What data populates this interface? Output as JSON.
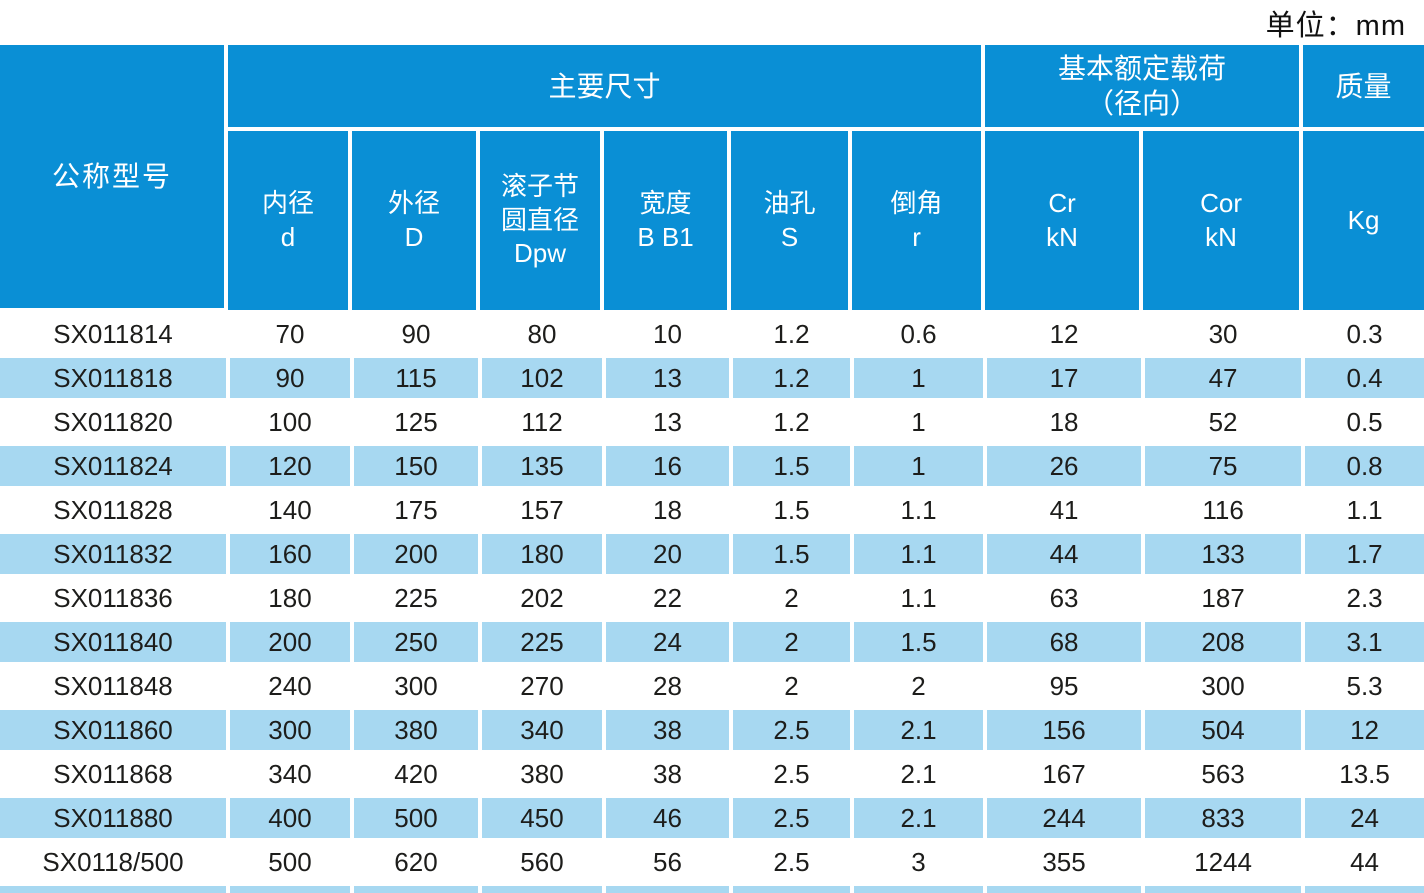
{
  "unit_label": "单位：mm",
  "colors": {
    "header_blue": "#0a8fd5",
    "row_light_blue": "#a7d8f1",
    "text_dark": "#1d1d1b",
    "header_text": "#ffffff"
  },
  "table": {
    "header": {
      "col_model": "公称型号",
      "group_main_dims": "主要尺寸",
      "group_load": "基本额定载荷\n（径向）",
      "group_mass": "质量",
      "sub": [
        "内径\nd",
        "外径\nD",
        "滚子节\n圆直径\nDpw",
        "宽度\nB B1",
        "油孔\nS",
        "倒角\nr",
        "Cr\nkN",
        "Cor\nkN",
        "Kg"
      ]
    },
    "rows": [
      [
        "SX011814",
        "70",
        "90",
        "80",
        "10",
        "1.2",
        "0.6",
        "12",
        "30",
        "0.3"
      ],
      [
        "SX011818",
        "90",
        "115",
        "102",
        "13",
        "1.2",
        "1",
        "17",
        "47",
        "0.4"
      ],
      [
        "SX011820",
        "100",
        "125",
        "112",
        "13",
        "1.2",
        "1",
        "18",
        "52",
        "0.5"
      ],
      [
        "SX011824",
        "120",
        "150",
        "135",
        "16",
        "1.5",
        "1",
        "26",
        "75",
        "0.8"
      ],
      [
        "SX011828",
        "140",
        "175",
        "157",
        "18",
        "1.5",
        "1.1",
        "41",
        "116",
        "1.1"
      ],
      [
        "SX011832",
        "160",
        "200",
        "180",
        "20",
        "1.5",
        "1.1",
        "44",
        "133",
        "1.7"
      ],
      [
        "SX011836",
        "180",
        "225",
        "202",
        "22",
        "2",
        "1.1",
        "63",
        "187",
        "2.3"
      ],
      [
        "SX011840",
        "200",
        "250",
        "225",
        "24",
        "2",
        "1.5",
        "68",
        "208",
        "3.1"
      ],
      [
        "SX011848",
        "240",
        "300",
        "270",
        "28",
        "2",
        "2",
        "95",
        "300",
        "5.3"
      ],
      [
        "SX011860",
        "300",
        "380",
        "340",
        "38",
        "2.5",
        "2.1",
        "156",
        "504",
        "12"
      ],
      [
        "SX011868",
        "340",
        "420",
        "380",
        "38",
        "2.5",
        "2.1",
        "167",
        "563",
        "13.5"
      ],
      [
        "SX011880",
        "400",
        "500",
        "450",
        "46",
        "2.5",
        "2.1",
        "244",
        "833",
        "24"
      ],
      [
        "SX0118/500",
        "500",
        "620",
        "560",
        "56",
        "2.5",
        "3",
        "355",
        "1244",
        "44"
      ]
    ]
  }
}
